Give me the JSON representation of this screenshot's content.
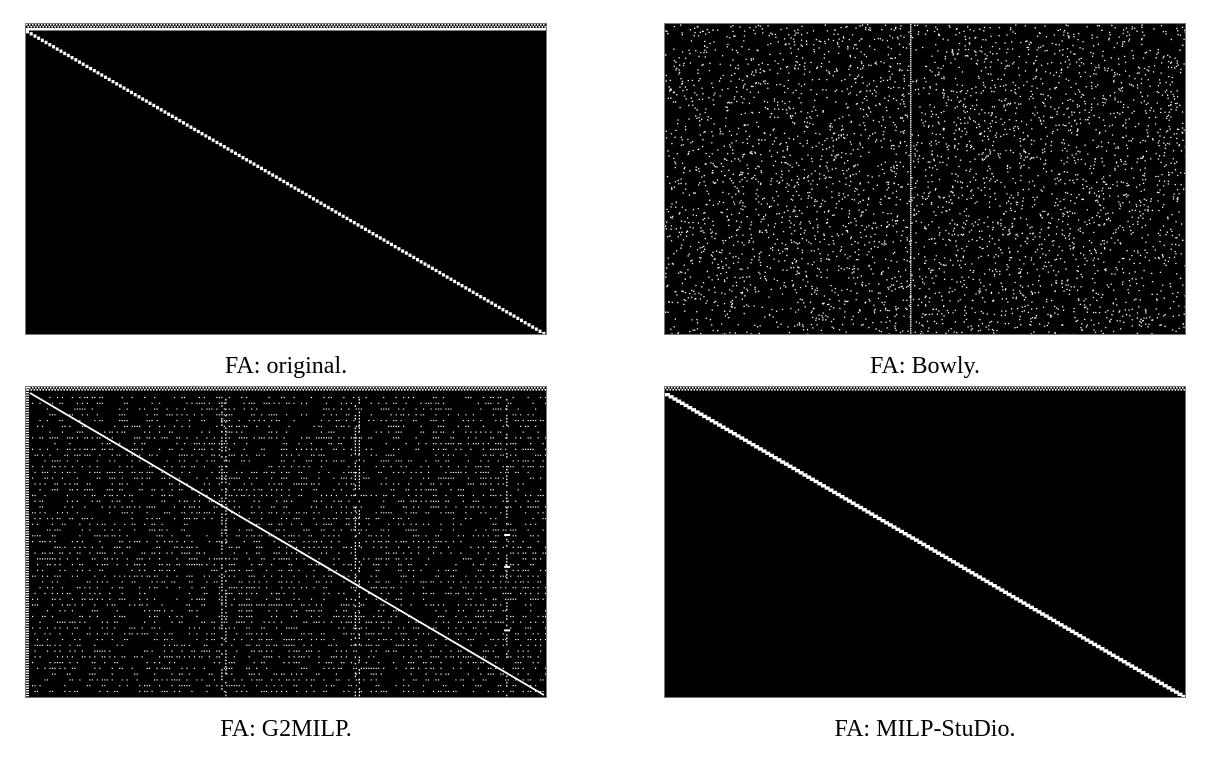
{
  "figure": {
    "panels": [
      {
        "caption": "FA: original.",
        "pattern": "staircase-diagonal",
        "background": "#000000",
        "dot_color": "#ffffff"
      },
      {
        "caption": "FA: Bowly.",
        "pattern": "uniform-random-noise",
        "background": "#000000",
        "dot_color": "#ffffff"
      },
      {
        "caption": "FA: G2MILP.",
        "pattern": "diagonal-with-sparse-rows",
        "background": "#000000",
        "dot_color": "#ffffff"
      },
      {
        "caption": "FA: MILP-StuDio.",
        "pattern": "staircase-diagonal",
        "background": "#000000",
        "dot_color": "#ffffff"
      }
    ]
  }
}
